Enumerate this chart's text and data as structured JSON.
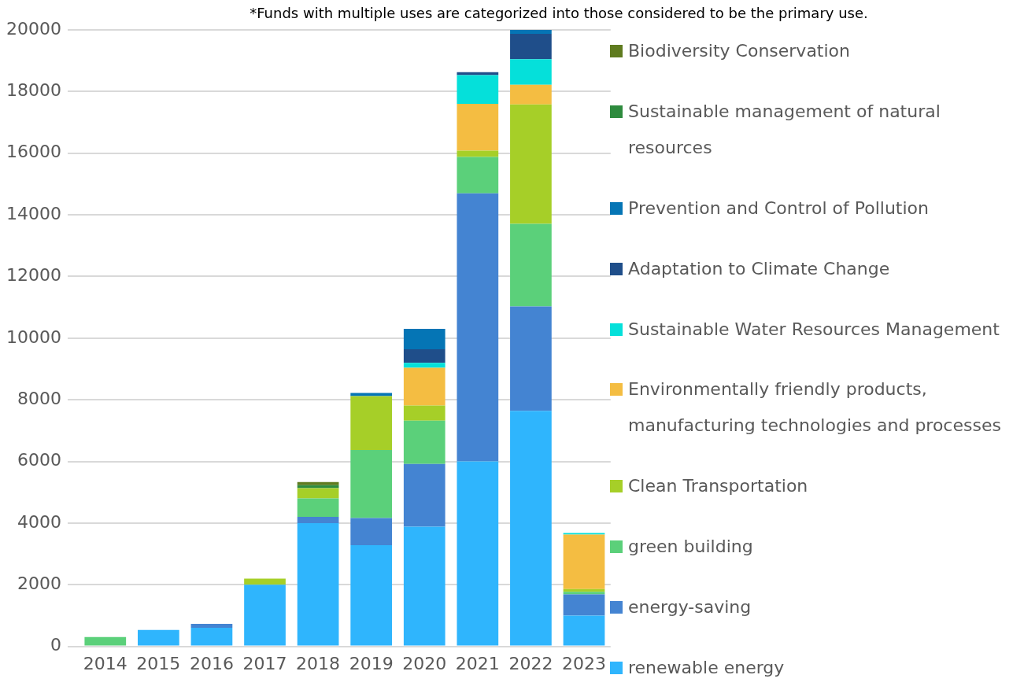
{
  "chart_data": {
    "type": "bar",
    "stacked": true,
    "categories": [
      "2014",
      "2015",
      "2016",
      "2017",
      "2018",
      "2019",
      "2020",
      "2021",
      "2022",
      "2023"
    ],
    "annotations": [
      "*Funds with multiple uses are categorized into those considered to be the primary use."
    ],
    "ylim": [
      0,
      20000
    ],
    "yticks": [
      0,
      2000,
      4000,
      6000,
      8000,
      10000,
      12000,
      14000,
      16000,
      18000,
      20000
    ],
    "grid": "y",
    "legend": "right",
    "series": [
      {
        "name": "renewable energy",
        "color": "#2fb5fd",
        "values": [
          null,
          530,
          600,
          2000,
          4000,
          3280,
          3880,
          6000,
          7640,
          1000
        ]
      },
      {
        "name": "energy-saving",
        "color": "#4484d2",
        "values": [
          null,
          null,
          130,
          null,
          200,
          880,
          2040,
          8700,
          3390,
          690
        ]
      },
      {
        "name": "green building",
        "color": "#5bd07a",
        "values": [
          300,
          null,
          null,
          null,
          600,
          2210,
          1400,
          1180,
          2680,
          80
        ]
      },
      {
        "name": "Clean Transportation",
        "color": "#a6cf28",
        "values": [
          null,
          null,
          null,
          200,
          330,
          1750,
          490,
          200,
          3870,
          90
        ]
      },
      {
        "name": "Environmentally friendly products, manufacturing technologies and processes",
        "color": "#f4bd42",
        "values": [
          null,
          null,
          null,
          null,
          null,
          null,
          1230,
          1520,
          640,
          1770
        ]
      },
      {
        "name": "Sustainable Water Resources Management",
        "color": "#05e0da",
        "values": [
          null,
          null,
          null,
          null,
          null,
          null,
          160,
          930,
          830,
          50
        ]
      },
      {
        "name": "Adaptation to Climate Change",
        "color": "#1f4e8a",
        "values": [
          null,
          null,
          null,
          null,
          null,
          null,
          440,
          100,
          820,
          null
        ]
      },
      {
        "name": "Prevention and Control of Pollution",
        "color": "#0575b5",
        "values": [
          null,
          null,
          null,
          null,
          null,
          100,
          660,
          null,
          130,
          null
        ]
      },
      {
        "name": "Sustainable management of natural resources",
        "color": "#2e8b3e",
        "values": [
          null,
          null,
          null,
          null,
          100,
          null,
          null,
          null,
          null,
          null
        ]
      },
      {
        "name": "Biodiversity Conservation",
        "color": "#5f7b1f",
        "values": [
          null,
          null,
          null,
          null,
          100,
          null,
          null,
          null,
          null,
          null
        ]
      }
    ]
  }
}
